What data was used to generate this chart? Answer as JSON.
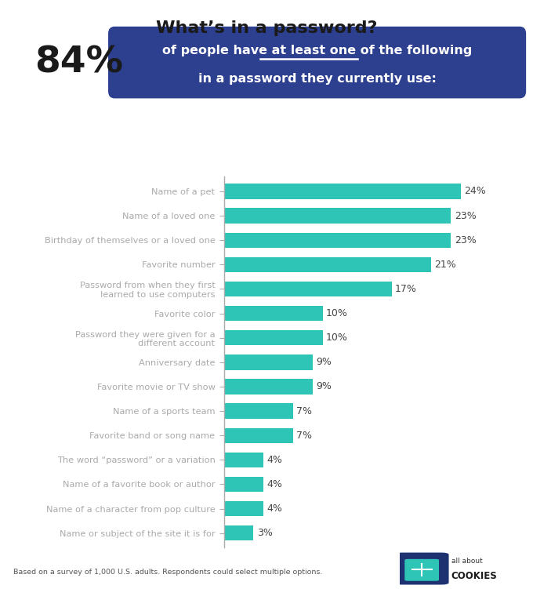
{
  "title": "What’s in a password?",
  "headline_percent": "84%",
  "categories": [
    "Name of a pet",
    "Name of a loved one",
    "Birthday of themselves or a loved one",
    "Favorite number",
    "Password from when they first\nlearned to use computers",
    "Favorite color",
    "Password they were given for a\ndifferent account",
    "Anniversary date",
    "Favorite movie or TV show",
    "Name of a sports team",
    "Favorite band or song name",
    "The word “password” or a variation",
    "Name of a favorite book or author",
    "Name of a character from pop culture",
    "Name or subject of the site it is for"
  ],
  "values": [
    24,
    23,
    23,
    21,
    17,
    10,
    10,
    9,
    9,
    7,
    7,
    4,
    4,
    4,
    3
  ],
  "bar_color": "#2ec4b6",
  "background_color": "#ffffff",
  "title_color": "#1a1a1a",
  "label_color": "#333333",
  "value_color": "#444444",
  "headline_box_color": "#2d3f8f",
  "headline_box_text_color": "#ffffff",
  "headline_percent_color": "#1a1a1a",
  "axis_line_color": "#aaaaaa",
  "footnote": "Based on a survey of 1,000 U.S. adults. Respondents could select multiple options.",
  "footnote_color": "#555555",
  "xlim": [
    0,
    27
  ]
}
